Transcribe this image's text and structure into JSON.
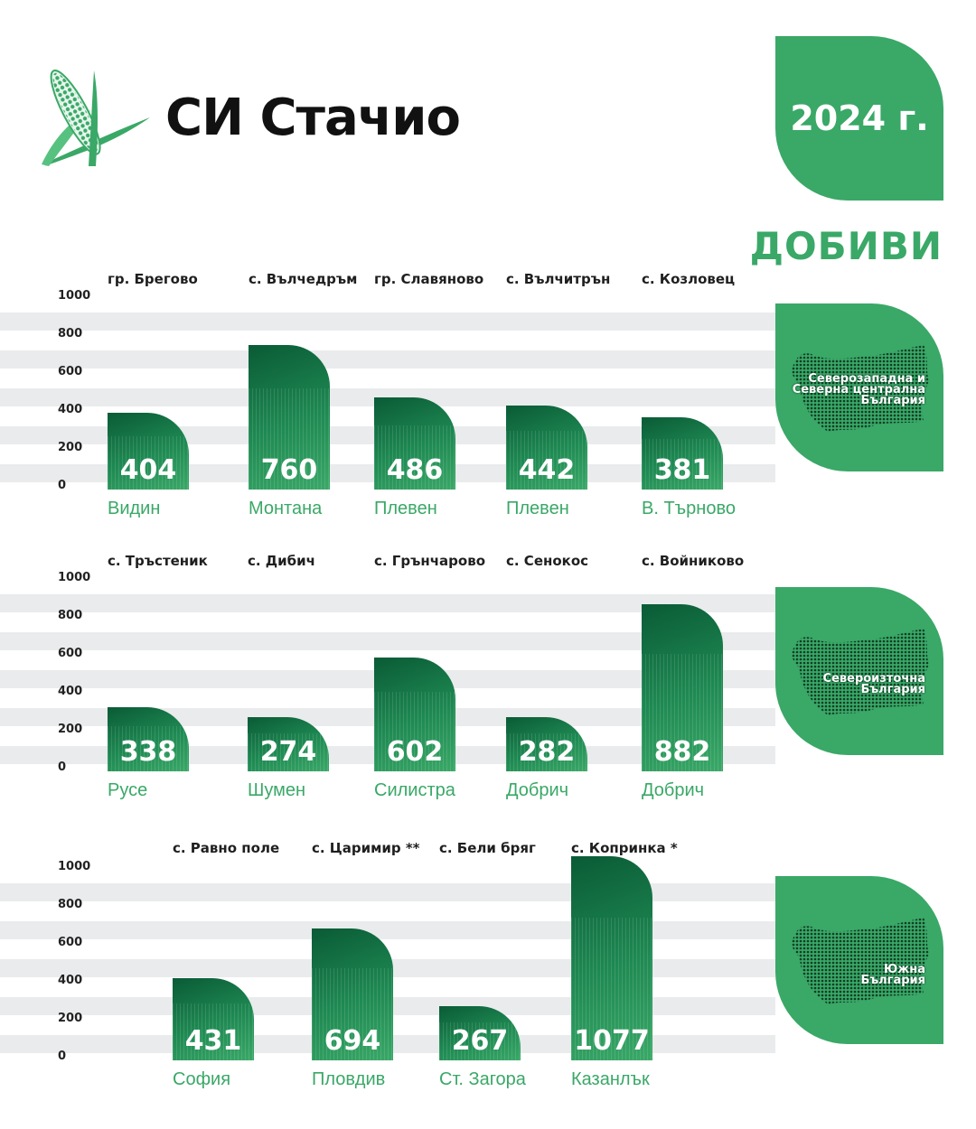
{
  "brand": {
    "name": "СИ Стачио",
    "logo_icon": "corn-icon"
  },
  "year": "2024 г.",
  "section_title": "ДОБИВИ",
  "colors": {
    "accent": "#3aa867",
    "bar_dark": "#0a5b36",
    "stripe": "#e9ebed"
  },
  "chart_data": [
    {
      "type": "bar",
      "region": "Северозападна и Северна централна България",
      "yticks": [
        1000,
        800,
        600,
        400,
        200,
        0
      ],
      "ylim": [
        0,
        1000
      ],
      "categories": [
        "Видин",
        "Монтана",
        "Плевен",
        "Плевен",
        "В. Търново"
      ],
      "villages": [
        "гр. Брегово",
        "с. Вълчедръм",
        "гр. Славяново",
        "с. Вълчитрън",
        "с. Козловец"
      ],
      "values": [
        404,
        760,
        486,
        442,
        381
      ]
    },
    {
      "type": "bar",
      "region": "Североизточна България",
      "yticks": [
        1000,
        800,
        600,
        400,
        200,
        0
      ],
      "ylim": [
        0,
        1000
      ],
      "categories": [
        "Русе",
        "Шумен",
        "Силистра",
        "Добрич",
        "Добрич"
      ],
      "villages": [
        "с. Тръстеник",
        "с. Дибич",
        "с. Грънчарово",
        "с. Сенокос",
        "с. Войниково"
      ],
      "values": [
        338,
        274,
        602,
        282,
        882
      ]
    },
    {
      "type": "bar",
      "region": "Южна България",
      "yticks": [
        1000,
        800,
        600,
        400,
        200,
        0
      ],
      "ylim": [
        0,
        1000
      ],
      "categories": [
        "София",
        "Пловдив",
        "Ст. Загора",
        "Казанлък"
      ],
      "villages": [
        "с. Равно поле",
        "с. Царимир **",
        "с. Бели бряг",
        "с. Копринка *"
      ],
      "values": [
        431,
        694,
        267,
        1077
      ]
    }
  ],
  "regions": [
    {
      "label_lines": [
        "Северозападна и",
        "Северна централна",
        "България"
      ],
      "icon": "bulgaria-map-icon"
    },
    {
      "label_lines": [
        "Североизточна",
        "България"
      ],
      "icon": "bulgaria-map-icon"
    },
    {
      "label_lines": [
        "Южна",
        "България"
      ],
      "icon": "bulgaria-map-icon"
    }
  ]
}
